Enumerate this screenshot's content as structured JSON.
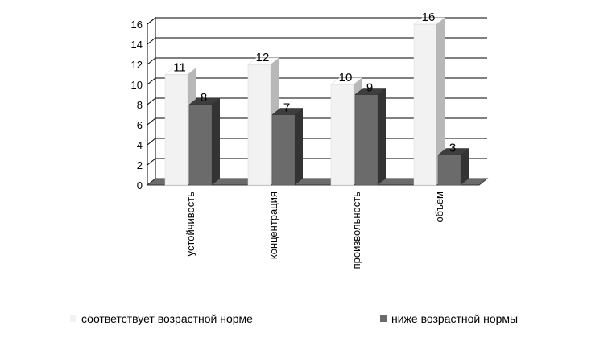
{
  "chart_data": {
    "type": "bar",
    "categories": [
      "устойчивость",
      "концентрация",
      "произвольность",
      "объем"
    ],
    "series": [
      {
        "name": "соответствует возрастной норме",
        "values": [
          11,
          12,
          10,
          16
        ],
        "color": "#f2f2f2"
      },
      {
        "name": "ниже возрастной нормы",
        "values": [
          8,
          7,
          9,
          3
        ],
        "color": "#6b6b6b"
      }
    ],
    "yticks": [
      "0",
      "2",
      "4",
      "6",
      "8",
      "10",
      "12",
      "14",
      "16"
    ],
    "ylim": [
      0,
      16
    ],
    "grid": true,
    "legend": "bottom",
    "three_d": true
  },
  "legend": {
    "items": [
      {
        "label": "соответствует возрастной норме",
        "color": "#f2f2f2"
      },
      {
        "label": "ниже возрастной нормы",
        "color": "#6b6b6b"
      }
    ]
  }
}
